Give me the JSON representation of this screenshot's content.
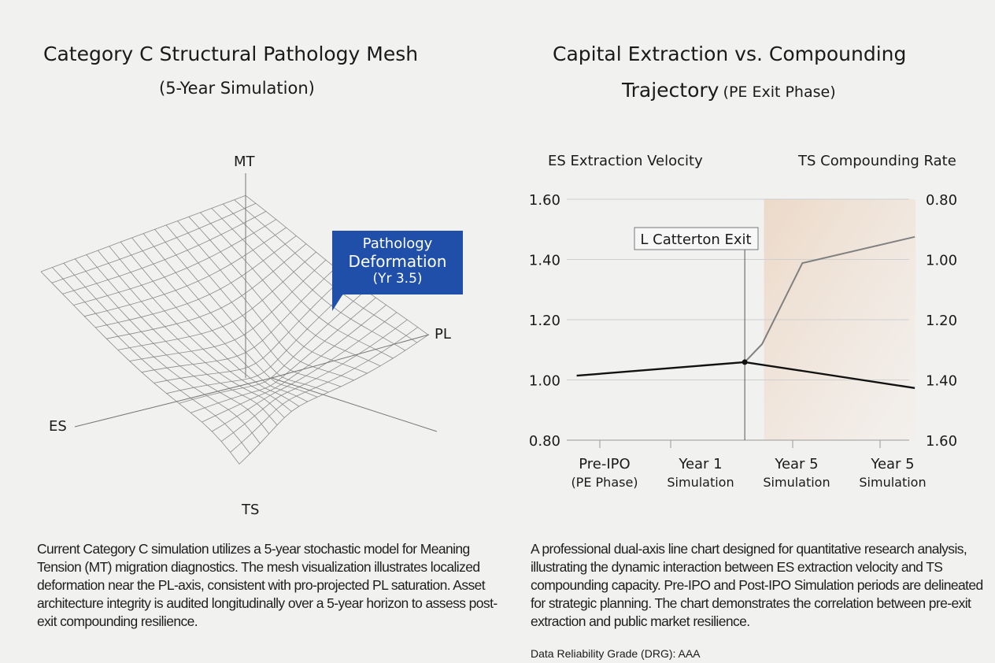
{
  "left_panel": {
    "title": "Category C Structural Pathology Mesh",
    "subtitle": "(5-Year Simulation)",
    "axes": {
      "top": "MT",
      "right": "PL",
      "left": "ES",
      "bottom": "TS"
    },
    "callout": {
      "line1": "Pathology",
      "line2": "Deformation",
      "line3": "(Yr 3.5)",
      "color": "#1f4fa8"
    },
    "description": "Current Category C simulation utilizes a 5-year stochastic model for Meaning Tension (MT) migration diagnostics. The mesh visualization illustrates localized deformation near the PL-axis, consistent with pro-projected PL saturation. Asset architecture integrity is audited longitudinally over a 5-year horizon to assess post-exit compounding resilience."
  },
  "right_panel": {
    "title_line1": "Capital Extraction vs. Compounding",
    "title_line2_bold": "Trajectory",
    "title_line2_light": "(PE Exit Phase)",
    "description": "A professional dual-axis line chart designed for quantitative research analysis, illustrating the dynamic interaction between ES extraction velocity and TS compounding capacity. Pre-IPO and Post-IPO Simulation periods are delineated for strategic planning. The chart demonstrates the correlation between pre-exit extraction and public market resilience.",
    "footnote": "Data Reliability Grade (DRG): AAA"
  },
  "chart_data": {
    "type": "line",
    "ylabel_left": "ES Extraction Velocity",
    "ylabel_right": "TS Compounding Rate",
    "ylim_left": [
      0.8,
      1.6
    ],
    "ylim_right": [
      1.6,
      0.8
    ],
    "right_axis_inverted": true,
    "yticks_left": [
      "1.60",
      "1.40",
      "1.20",
      "1.00",
      "0.80"
    ],
    "yticks_right": [
      "0.80",
      "1.00",
      "1.20",
      "1.40",
      "1.60"
    ],
    "categories": [
      {
        "line1": "Pre-IPO",
        "line2": "(PE Phase)"
      },
      {
        "line1": "Year 1",
        "line2": "Simulation"
      },
      {
        "line1": "Year 5",
        "line2": "Simulation"
      },
      {
        "line1": "Year 5",
        "line2": "Simulation"
      }
    ],
    "grid": true,
    "annotation": {
      "label": "L Catterton Exit",
      "x": 1.46
    },
    "shaded_region": {
      "x_start": 1.66,
      "x_end": 3.24,
      "color": "#ecd9c8"
    },
    "series": [
      {
        "axis": "left",
        "color": "#111111",
        "points": [
          [
            -0.29,
            1.014
          ],
          [
            1.46,
            1.059
          ],
          [
            2.06,
            1.03
          ],
          [
            3.23,
            0.973
          ]
        ]
      },
      {
        "axis": "right",
        "color": "#808080",
        "points": [
          [
            1.46,
            1.341
          ],
          [
            1.64,
            1.281
          ],
          [
            2.06,
            1.012
          ],
          [
            3.23,
            0.925
          ]
        ]
      }
    ]
  }
}
